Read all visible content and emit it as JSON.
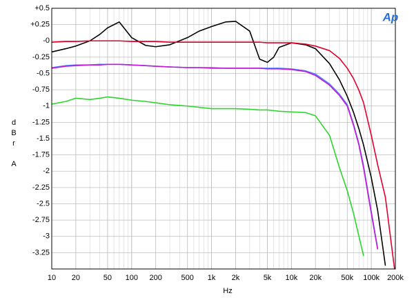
{
  "chart_data": {
    "type": "line",
    "log_x": true,
    "grid": true,
    "x_label": "Hz",
    "y_label": "dBr A",
    "logo": "Ap",
    "xlim": [
      10,
      200000
    ],
    "ylim": [
      -3.5,
      0.5
    ],
    "xticks": [
      10,
      20,
      50,
      100,
      200,
      500,
      {
        "value": 1000,
        "label": "1k"
      },
      {
        "value": 2000,
        "label": "2k"
      },
      {
        "value": 5000,
        "label": "5k"
      },
      {
        "value": 10000,
        "label": "10k"
      },
      {
        "value": 20000,
        "label": "20k"
      },
      {
        "value": 50000,
        "label": "50k"
      },
      {
        "value": 100000,
        "label": "100k"
      },
      {
        "value": 200000,
        "label": "200k"
      }
    ],
    "yticks": [
      {
        "value": 0.5,
        "label": "+0.5"
      },
      {
        "value": 0.25,
        "label": "+0.25"
      },
      {
        "value": 0,
        "label": "-0"
      },
      -0.25,
      -0.5,
      -0.75,
      -1,
      -1.25,
      -1.5,
      -1.75,
      -2,
      -2.25,
      -2.5,
      -2.75,
      -3,
      -3.25
    ],
    "x": [
      10,
      15,
      20,
      30,
      40,
      50,
      70,
      100,
      150,
      200,
      300,
      500,
      700,
      1000,
      1500,
      2000,
      3000,
      4000,
      5000,
      6000,
      7000,
      10000,
      15000,
      20000,
      30000,
      40000,
      50000,
      60000,
      70000,
      80000,
      100000,
      120000,
      150000,
      200000
    ],
    "series": [
      {
        "color": "#2ad62a",
        "values": [
          -0.97,
          -0.93,
          -0.88,
          -0.9,
          -0.88,
          -0.86,
          -0.88,
          -0.91,
          -0.93,
          -0.95,
          -0.98,
          -1.0,
          -1.02,
          -1.04,
          -1.04,
          -1.04,
          -1.05,
          -1.06,
          -1.06,
          -1.07,
          -1.08,
          -1.09,
          -1.1,
          -1.15,
          -1.45,
          -1.95,
          -2.3,
          -2.65,
          -3.0,
          -3.3,
          null,
          null,
          null,
          null
        ]
      },
      {
        "color": "#4f7dff",
        "values": [
          -0.41,
          -0.38,
          -0.37,
          -0.37,
          -0.36,
          -0.36,
          -0.36,
          -0.37,
          -0.38,
          -0.39,
          -0.4,
          -0.41,
          -0.41,
          -0.41,
          -0.42,
          -0.42,
          -0.42,
          -0.42,
          -0.42,
          -0.42,
          -0.42,
          -0.43,
          -0.46,
          -0.51,
          -0.66,
          -0.82,
          -0.98,
          -1.28,
          -1.58,
          -1.92,
          -2.62,
          -3.18,
          null,
          null
        ]
      },
      {
        "color": "#c21ad6",
        "values": [
          -0.42,
          -0.39,
          -0.38,
          -0.37,
          -0.37,
          -0.36,
          -0.36,
          -0.37,
          -0.38,
          -0.39,
          -0.4,
          -0.41,
          -0.41,
          -0.42,
          -0.42,
          -0.42,
          -0.42,
          -0.42,
          -0.43,
          -0.43,
          -0.43,
          -0.44,
          -0.47,
          -0.53,
          -0.68,
          -0.84,
          -1.0,
          -1.3,
          -1.6,
          -1.95,
          -2.65,
          -3.2,
          null,
          null
        ]
      },
      {
        "color": "#000000",
        "values": [
          -0.17,
          -0.12,
          -0.08,
          0.0,
          0.1,
          0.2,
          0.29,
          0.05,
          -0.07,
          -0.09,
          -0.06,
          0.05,
          0.15,
          0.22,
          0.29,
          0.3,
          0.15,
          -0.28,
          -0.33,
          -0.25,
          -0.1,
          -0.03,
          -0.06,
          -0.12,
          -0.35,
          -0.6,
          -0.85,
          -1.1,
          -1.35,
          -1.6,
          -2.1,
          -2.6,
          -3.45,
          null
        ]
      },
      {
        "color": "#e0002c",
        "values": [
          -0.02,
          -0.01,
          -0.01,
          0.0,
          0.0,
          0.0,
          0.0,
          -0.01,
          -0.01,
          -0.01,
          -0.02,
          -0.02,
          -0.02,
          -0.02,
          -0.02,
          -0.02,
          -0.02,
          -0.02,
          -0.03,
          -0.03,
          -0.03,
          -0.03,
          -0.05,
          -0.08,
          -0.15,
          -0.27,
          -0.42,
          -0.58,
          -0.76,
          -0.95,
          -1.45,
          -1.9,
          -2.4,
          -3.6
        ]
      }
    ]
  }
}
